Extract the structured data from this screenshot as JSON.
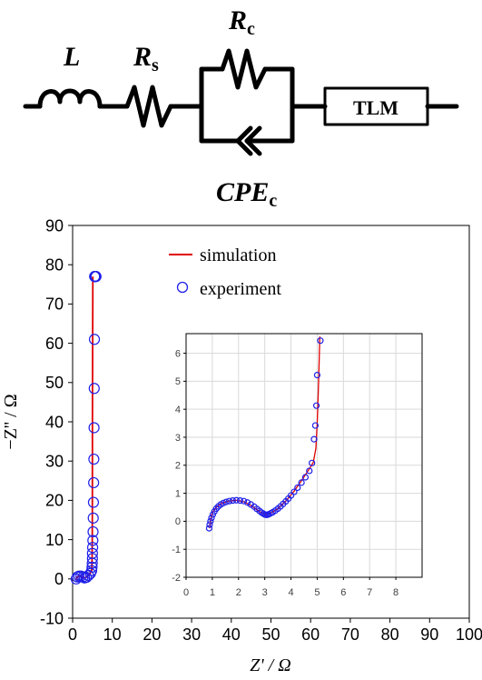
{
  "circuit": {
    "L": "L",
    "Rs_main": "R",
    "Rs_sub": "s",
    "Rc_main": "R",
    "Rc_sub": "c",
    "CPE_main": "CPE",
    "CPE_sub": "c",
    "tlm_label": "TLM"
  },
  "colors": {
    "simulation": "#e00000",
    "experiment": "#1f1fe8",
    "axis": "#000000",
    "grid": "#d9d9d9"
  },
  "chart_data": [
    {
      "type": "line",
      "xlabel": "Z' / Ω",
      "ylabel": "−Z'' / Ω",
      "xlim": [
        0,
        100
      ],
      "ylim": [
        -10,
        90
      ],
      "xticks": [
        0,
        10,
        20,
        30,
        40,
        50,
        60,
        70,
        80,
        90,
        100
      ],
      "yticks": [
        -10,
        0,
        10,
        20,
        30,
        40,
        50,
        60,
        70,
        80,
        90
      ],
      "grid": false,
      "legend": "top-center",
      "series": [
        {
          "name": "simulation",
          "style": "line",
          "x": [
            0.9,
            1.0,
            1.3,
            1.8,
            2.3,
            2.7,
            3.0,
            3.4,
            3.8,
            4.2,
            4.6,
            4.8,
            4.85,
            4.9,
            4.95,
            4.98,
            5.0,
            5.05,
            5.1
          ],
          "y": [
            -0.2,
            0.2,
            0.6,
            0.75,
            0.6,
            0.35,
            0.22,
            0.4,
            0.8,
            1.2,
            1.7,
            2.1,
            3.0,
            5.0,
            10.0,
            20.0,
            40.0,
            60.0,
            77.0
          ]
        },
        {
          "name": "experiment",
          "style": "markers",
          "x": [
            0.9,
            1.2,
            1.6,
            2.1,
            2.6,
            3.0,
            3.5,
            4.0,
            4.5,
            4.8,
            4.9,
            4.95,
            5.0,
            5.0,
            5.05,
            5.1,
            5.15,
            5.2,
            5.25,
            5.3,
            5.35,
            5.4,
            5.45,
            5.5,
            5.55,
            5.6,
            5.65,
            5.7,
            5.75,
            5.8,
            5.9
          ],
          "y": [
            0.0,
            0.5,
            0.7,
            0.72,
            0.5,
            0.25,
            0.4,
            0.9,
            1.4,
            2.1,
            3.0,
            4.0,
            5.2,
            6.5,
            8.0,
            9.8,
            12.0,
            15.5,
            19.5,
            24.5,
            30.5,
            38.5,
            48.5,
            61.0,
            77.0,
            77.0,
            77.0,
            77.0,
            77.0,
            77.0,
            77.0
          ]
        }
      ]
    },
    {
      "type": "line",
      "xlabel": "",
      "ylabel": "",
      "xlim": [
        0,
        9
      ],
      "ylim": [
        -2,
        6.7
      ],
      "xticks": [
        0,
        1,
        2,
        3,
        4,
        5,
        6,
        7,
        8
      ],
      "yticks": [
        -2,
        -1,
        0,
        1,
        2,
        3,
        4,
        5,
        6
      ],
      "grid": true,
      "series": [
        {
          "name": "simulation",
          "style": "line",
          "x": [
            0.9,
            0.95,
            1.0,
            1.15,
            1.35,
            1.6,
            1.9,
            2.2,
            2.5,
            2.75,
            2.95,
            3.05,
            3.2,
            3.5,
            3.8,
            4.1,
            4.4,
            4.65,
            4.85,
            4.95,
            5.0,
            5.03,
            5.06,
            5.08,
            5.1
          ],
          "y": [
            -0.25,
            0.1,
            0.3,
            0.5,
            0.63,
            0.72,
            0.75,
            0.7,
            0.55,
            0.38,
            0.26,
            0.23,
            0.27,
            0.45,
            0.72,
            1.05,
            1.45,
            1.8,
            2.1,
            2.6,
            3.5,
            4.3,
            5.2,
            5.9,
            6.6
          ]
        },
        {
          "name": "experiment",
          "style": "markers",
          "x": [
            0.88,
            0.9,
            0.93,
            0.97,
            1.02,
            1.08,
            1.15,
            1.23,
            1.32,
            1.42,
            1.53,
            1.65,
            1.78,
            1.92,
            2.06,
            2.2,
            2.34,
            2.47,
            2.6,
            2.7,
            2.8,
            2.88,
            2.95,
            3.0,
            3.05,
            3.1,
            3.15,
            3.22,
            3.3,
            3.4,
            3.5,
            3.6,
            3.7,
            3.8,
            3.9,
            4.0,
            4.12,
            4.25,
            4.4,
            4.55,
            4.7,
            4.8,
            4.88,
            4.93,
            4.97,
            5.0
          ],
          "y": [
            -0.25,
            -0.12,
            0.0,
            0.12,
            0.24,
            0.35,
            0.45,
            0.53,
            0.6,
            0.65,
            0.69,
            0.72,
            0.74,
            0.75,
            0.74,
            0.72,
            0.67,
            0.6,
            0.52,
            0.44,
            0.37,
            0.31,
            0.27,
            0.24,
            0.23,
            0.23,
            0.25,
            0.28,
            0.32,
            0.38,
            0.45,
            0.53,
            0.62,
            0.71,
            0.81,
            0.92,
            1.05,
            1.2,
            1.38,
            1.57,
            1.8,
            2.08,
            2.93,
            3.42,
            4.13,
            5.22
          ]
        },
        {
          "name": "experiment-top",
          "style": "markers",
          "x": [
            5.12
          ],
          "y": [
            6.45
          ]
        }
      ]
    }
  ],
  "legend": {
    "simulation": "simulation",
    "experiment": "experiment"
  }
}
